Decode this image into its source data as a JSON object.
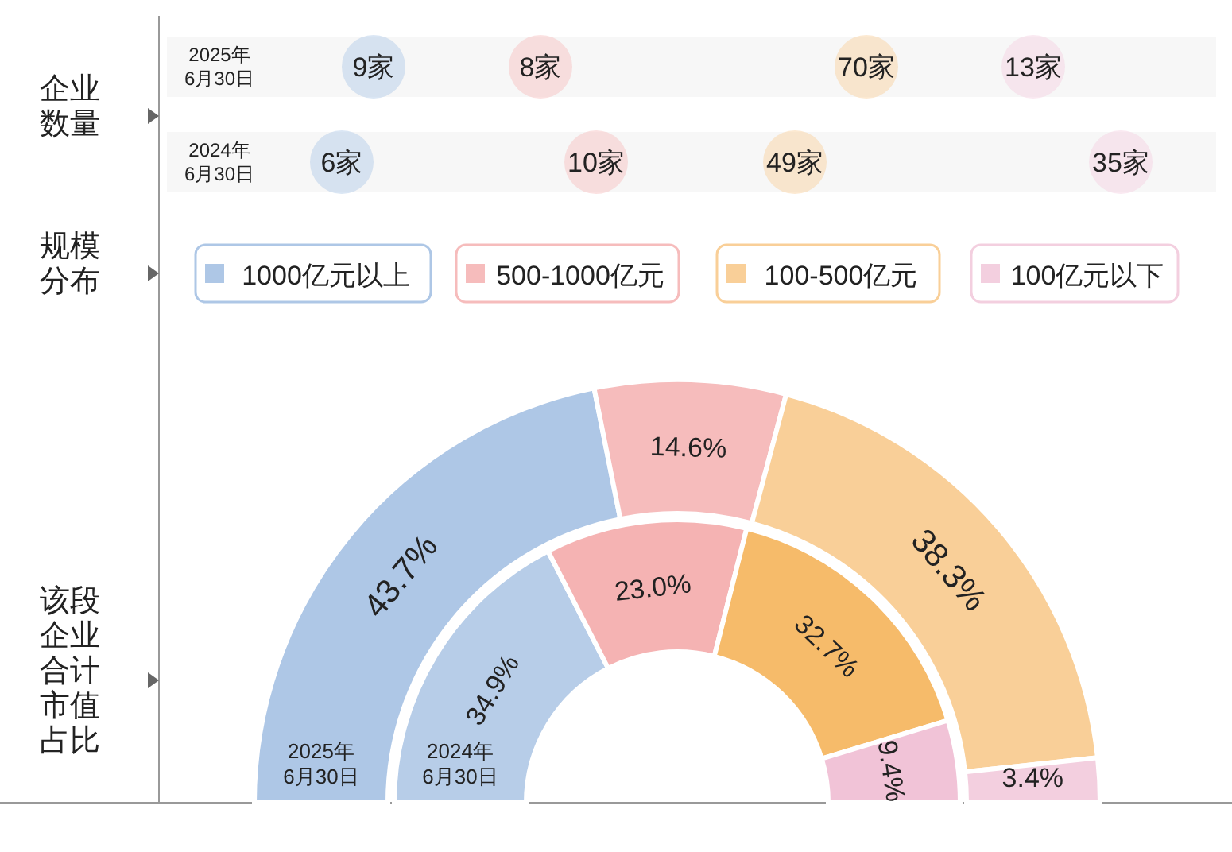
{
  "chart_data": [
    {
      "type": "other",
      "title": "企业数量",
      "annotations": [
        "2025年\n6月30日",
        "9家",
        "8家",
        "70家",
        "13家",
        "2024年\n6月30日",
        "6家",
        "10家",
        "49家",
        "35家"
      ]
    },
    {
      "type": "donut",
      "title": "该段企业合计市值占比",
      "legend_title": "规模分布",
      "legend": "top",
      "categories": [
        "1000亿元以上",
        "500-1000亿元",
        "100-500亿元",
        "100亿元以下"
      ],
      "series": [
        {
          "name": "2025年\n6月30日",
          "values": [
            43.7,
            14.6,
            38.3,
            3.4
          ],
          "value_labels": [
            "43.7%",
            "14.6%",
            "38.3%",
            "3.4%"
          ],
          "colors": [
            "#aec7e6",
            "#f6bcbc",
            "#f9cf98",
            "#f3cfdf"
          ]
        },
        {
          "name": "2024年\n6月30日",
          "values": [
            34.9,
            23.0,
            32.7,
            9.4
          ],
          "value_labels": [
            "34.9%",
            "23.0%",
            "32.7%",
            "9.4%"
          ],
          "colors": [
            "#b7cde8",
            "#f5b3b3",
            "#f6bb6a",
            "#f1c3d7"
          ]
        }
      ]
    }
  ]
}
